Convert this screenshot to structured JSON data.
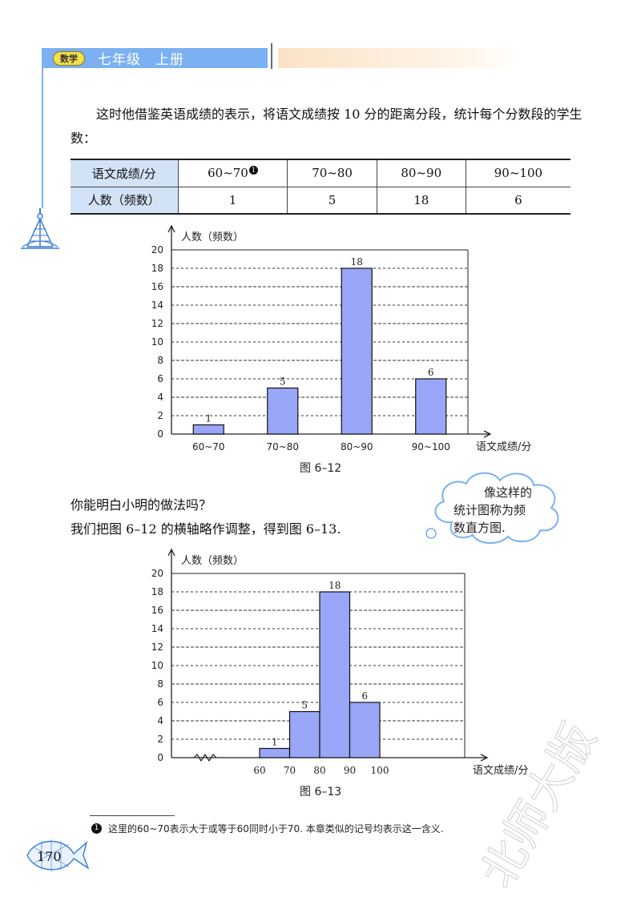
{
  "header": {
    "badge": "数学",
    "title": "七年级　上册"
  },
  "text": {
    "para1": "这时他借鉴英语成绩的表示，将语文成绩按 10 分的距离分段，统计每个分数段的学生数：",
    "para2": "你能明白小明的做法吗？",
    "para3": "我们把图 6–12 的横轴略作调整，得到图 6–13."
  },
  "table": {
    "row_headers": [
      "语文成绩/分",
      "人数（频数）"
    ],
    "columns": [
      "60~70",
      "70~80",
      "80~90",
      "90~100"
    ],
    "values": [
      "1",
      "5",
      "18",
      "6"
    ],
    "footnote_marker": "1"
  },
  "cloud": {
    "lines": [
      "像这样的",
      "统计图称为频",
      "数直方图."
    ]
  },
  "figure1": {
    "caption": "图 6–12"
  },
  "figure2": {
    "caption": "图 6–13"
  },
  "footnote": {
    "marker": "1",
    "text": "这里的60~70表示大于或等于60同时小于70. 本章类似的记号均表示这一含义."
  },
  "page_number": "170",
  "watermark": "北师大版",
  "colors": {
    "bar_fill": "#9aa6f7",
    "header_bar": "#7bb1f2",
    "table_header_bg": "#d3e3f7"
  },
  "chart_data": [
    {
      "type": "bar",
      "categories": [
        "60~70",
        "70~80",
        "80~90",
        "90~100"
      ],
      "values": [
        1,
        5,
        18,
        6
      ],
      "ylabel": "人数（频数）",
      "xlabel": "语文成绩/分",
      "ylim": [
        0,
        20
      ],
      "yticks": [
        0,
        2,
        4,
        6,
        8,
        10,
        12,
        14,
        16,
        18,
        20
      ],
      "grid": true
    },
    {
      "type": "bar",
      "bins": [
        [
          60,
          70
        ],
        [
          70,
          80
        ],
        [
          80,
          90
        ],
        [
          90,
          100
        ]
      ],
      "xticks": [
        "60",
        "70",
        "80",
        "90",
        "100"
      ],
      "values": [
        1,
        5,
        18,
        6
      ],
      "ylabel": "人数（频数）",
      "xlabel": "语文成绩/分",
      "ylim": [
        0,
        20
      ],
      "yticks": [
        0,
        2,
        4,
        6,
        8,
        10,
        12,
        14,
        16,
        18,
        20
      ],
      "grid": true
    }
  ]
}
